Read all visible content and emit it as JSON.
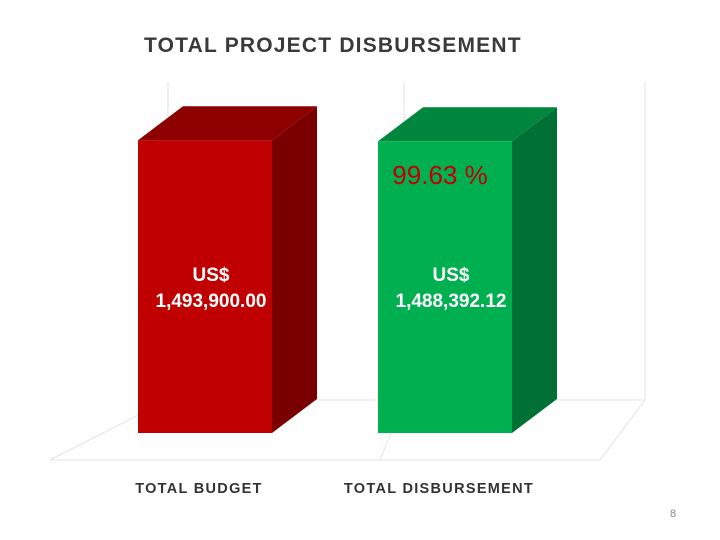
{
  "chart_data": {
    "type": "bar",
    "title": "TOTAL PROJECT DISBURSEMENT",
    "categories": [
      "TOTAL BUDGET",
      "TOTAL DISBURSEMENT"
    ],
    "values": [
      1493900.0,
      1488392.12
    ],
    "value_labels": [
      [
        "US$",
        "1,493,900.00"
      ],
      [
        "US$",
        "1,488,392.12"
      ]
    ],
    "annotation": "99.63 %",
    "colors": {
      "bars": [
        "#c00000",
        "#00b050"
      ],
      "bar_tops": [
        "#8c0000",
        "#00873d"
      ],
      "bar_sides": [
        "#7a0000",
        "#007035"
      ],
      "annotation": "#c00000"
    },
    "ylim": [
      0,
      1500000
    ],
    "style": "3d-column",
    "grid": true,
    "legend": "none"
  },
  "page_number": "8"
}
